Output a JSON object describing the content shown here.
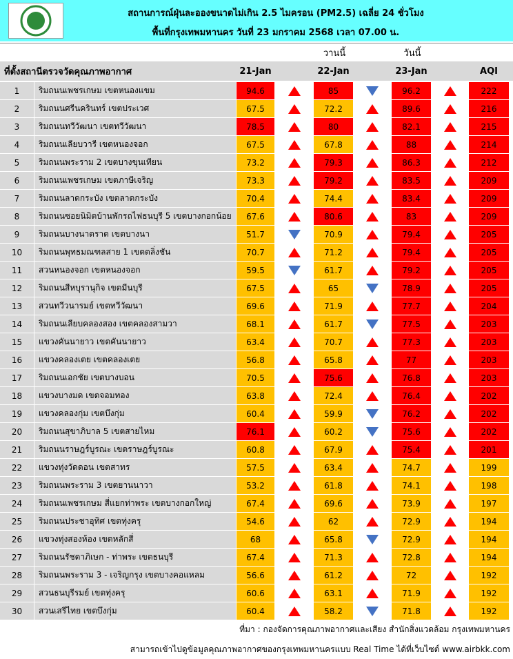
{
  "header": {
    "title": "สถานการณ์ฝุ่นละอองขนาดไม่เกิน 2.5 ไมครอน (PM2.5) เฉลี่ย 24 ชั่วโมง",
    "subtitle": "พื้นที่กรุงเทพมหานคร วันที่ 23 มกราคม 2568 เวลา 07.00 น."
  },
  "table": {
    "day_labels": [
      "วานนี้",
      "วันนี้"
    ],
    "columns": [
      "ที่ตั้งสถานีตรวจวัดคุณภาพอากาศ",
      "21-Jan",
      "22-Jan",
      "23-Jan",
      "AQI"
    ],
    "rows": [
      [
        1,
        "ริมถนนเพชรเกษม เขตหนองแขม",
        94.6,
        85,
        96.2,
        222
      ],
      [
        2,
        "ริมถนนศรีนครินทร์ เขตประเวศ",
        67.5,
        72.2,
        89.6,
        216
      ],
      [
        3,
        "ริมถนนทวีวัฒนา เขตทวีวัฒนา",
        78.5,
        80,
        82.1,
        215
      ],
      [
        4,
        "ริมถนนเลียบวารี เขตหนองจอก",
        67.5,
        67.8,
        88,
        214
      ],
      [
        5,
        "ริมถนนพระราม 2 เขตบางขุนเทียน",
        73.2,
        79.3,
        86.3,
        212
      ],
      [
        6,
        "ริมถนนเพชรเกษม เขตภาษีเจริญ",
        73.3,
        79.2,
        83.5,
        209
      ],
      [
        7,
        "ริมถนนลาดกระบัง เขตลาดกระบัง",
        70.4,
        74.4,
        83.4,
        209
      ],
      [
        8,
        "ริมถนนซอยนิมิตบ้านพักรถไฟธนบุรี 5 เขตบางกอกน้อย",
        67.6,
        80.6,
        83,
        209
      ],
      [
        9,
        "ริมถนนบางนาตราด เขตบางนา",
        51.7,
        70.9,
        79.4,
        205
      ],
      [
        10,
        "ริมถนนพุทธมณฑลสาย 1 เขตตลิ่งชัน",
        70.7,
        71.2,
        79.4,
        205
      ],
      [
        11,
        "สวนหนองจอก เขตหนองจอก",
        59.5,
        61.7,
        79.2,
        205
      ],
      [
        12,
        "ริมถนนสีหบุรานุกิจ เขตมีนบุรี",
        67.5,
        65,
        78.9,
        205
      ],
      [
        13,
        "สวนทวีวนารมย์ เขตทวีวัฒนา",
        69.6,
        71.9,
        77.7,
        204
      ],
      [
        14,
        "ริมถนนเลียบคลองสอง เขตคลองสามวา",
        68.1,
        61.7,
        77.5,
        203
      ],
      [
        15,
        "แขวงคันนายาว เขตคันนายาว",
        63.4,
        70.7,
        77.3,
        203
      ],
      [
        16,
        "แขวงคลองเตย เขตคลองเตย",
        56.8,
        65.8,
        77,
        203
      ],
      [
        17,
        "ริมถนนเอกชัย เขตบางบอน",
        70.5,
        75.6,
        76.8,
        203
      ],
      [
        18,
        "แขวงบางมด เขตจอมทอง",
        63.8,
        72.4,
        76.4,
        202
      ],
      [
        19,
        "แขวงคลองกุ่ม เขตบึงกุ่ม",
        60.4,
        59.9,
        76.2,
        202
      ],
      [
        20,
        "ริมถนนสุขาภิบาล 5 เขตสายไหม",
        76.1,
        60.2,
        75.6,
        202
      ],
      [
        21,
        "ริมถนนราษฎร์บูรณะ เขตราษฎร์บูรณะ",
        60.8,
        67.9,
        75.4,
        201
      ],
      [
        22,
        "แขวงทุ่งวัดดอน เขตสาทร",
        57.5,
        63.4,
        74.7,
        199
      ],
      [
        23,
        "ริมถนนพระราม 3 เขตยานนาวา",
        53.2,
        61.8,
        74.1,
        198
      ],
      [
        24,
        "ริมถนนเพชรเกษม สี่แยกท่าพระ เขตบางกอกใหญ่",
        67.4,
        69.6,
        73.9,
        197
      ],
      [
        25,
        "ริมถนนประชาอุทิศ เขตทุ่งครุ",
        54.6,
        62,
        72.9,
        194
      ],
      [
        26,
        "แขวงทุ่งสองห้อง เขตหลักสี่",
        68,
        65.8,
        72.9,
        194
      ],
      [
        27,
        "ริมถนนรัชดาภิเษก - ท่าพระ เขตธนบุรี",
        67.4,
        71.3,
        72.8,
        194
      ],
      [
        28,
        "ริมถนนพระราม 3 - เจริญกรุง เขตบางคอแหลม",
        56.6,
        61.2,
        72,
        192
      ],
      [
        29,
        "สวนธนบุรีรมย์ เขตทุ่งครุ",
        60.6,
        63.1,
        71.9,
        192
      ],
      [
        30,
        "สวนเสรีไทย  เขตบึงกุ่ม",
        60.4,
        58.2,
        71.8,
        192
      ]
    ],
    "trends": [
      [
        "up",
        "down",
        "up"
      ],
      [
        "up",
        "up",
        "up"
      ],
      [
        "up",
        "up",
        "up"
      ],
      [
        "up",
        "up",
        "up"
      ],
      [
        "up",
        "up",
        "up"
      ],
      [
        "up",
        "up",
        "up"
      ],
      [
        "up",
        "up",
        "up"
      ],
      [
        "up",
        "up",
        "up"
      ],
      [
        "down",
        "up",
        "up"
      ],
      [
        "up",
        "up",
        "up"
      ],
      [
        "down",
        "up",
        "up"
      ],
      [
        "up",
        "down",
        "up"
      ],
      [
        "up",
        "up",
        "up"
      ],
      [
        "up",
        "down",
        "up"
      ],
      [
        "up",
        "up",
        "up"
      ],
      [
        "up",
        "up",
        "up"
      ],
      [
        "up",
        "up",
        "up"
      ],
      [
        "up",
        "up",
        "up"
      ],
      [
        "up",
        "down",
        "up"
      ],
      [
        "up",
        "down",
        "up"
      ],
      [
        "up",
        "up",
        "up"
      ],
      [
        "up",
        "up",
        "up"
      ],
      [
        "up",
        "up",
        "up"
      ],
      [
        "up",
        "up",
        "up"
      ],
      [
        "up",
        "up",
        "up"
      ],
      [
        "up",
        "down",
        "up"
      ],
      [
        "up",
        "up",
        "up"
      ],
      [
        "up",
        "up",
        "up"
      ],
      [
        "up",
        "up",
        "up"
      ],
      [
        "up",
        "down",
        "up"
      ]
    ]
  },
  "footer": {
    "source": "ที่มา : กองจัดการคุณภาพอากาศและเสียง สำนักสิ่งแวดล้อม กรุงเทพมหานคร",
    "note": "สามารถเข้าไปดูข้อมูลคุณภาพอากาศของกรุงเทพมหานครแบบ Real Time ได้ที่เว็บไซต์ www.airbkk.com"
  }
}
